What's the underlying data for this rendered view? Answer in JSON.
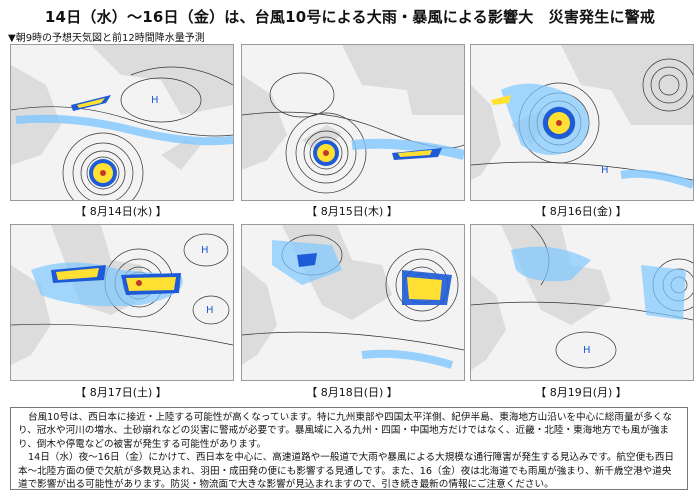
{
  "header": {
    "title": "14日（水）～16日（金）は、台風10号による大雨・暴風による影響大　災害発生に警戒",
    "subtitle": "▼朝9時の予想天気図と前12時間降水量予測"
  },
  "panels": [
    {
      "label": "【 8月14日(水) 】",
      "pressure_systems": [
        "H"
      ]
    },
    {
      "label": "【 8月15日(木) 】",
      "pressure_systems": []
    },
    {
      "label": "【 8月16日(金) 】",
      "pressure_systems": [
        "H"
      ]
    },
    {
      "label": "【 8月17日(土) 】",
      "pressure_systems": [
        "H",
        "H"
      ]
    },
    {
      "label": "【 8月18日(日) 】",
      "pressure_systems": []
    },
    {
      "label": "【 8月19日(月) 】",
      "pressure_systems": [
        "H"
      ]
    }
  ],
  "notes": {
    "paragraph1": "台風10号は、西日本に接近・上陸する可能性が高くなっています。特に九州東部や四国太平洋側、紀伊半島、東海地方山沿いを中心に総雨量が多くなり、冠水や河川の増水、土砂崩れなどの災害に警戒が必要です。暴風域に入る九州・四国・中国地方だけではなく、近畿・北陸・東海地方でも風が強まり、倒木や停電などの被害が発生する可能性があります。",
    "paragraph2": "14日（水）夜～16日（金）にかけて、西日本を中心に、高速道路や一般道で大雨や暴風による大規模な通行障害が発生する見込みです。航空便も西日本～北陸方面の便で欠航が多数見込まれ、羽田・成田発の便にも影響する見通しです。また、16（金）夜は北海道でも雨風が強まり、新千歳空港や道央道で影響が出る可能性があります。防災・物流面で大きな影響が見込まれますので、引き続き最新の情報にご注意ください。"
  },
  "colors": {
    "sea": "#f3f3f3",
    "land": "#dcdcdc",
    "rain_light": "#7fc7ff",
    "rain_medium": "#1e5bd6",
    "rain_heavy": "#ffe033",
    "isobar": "#333333"
  }
}
